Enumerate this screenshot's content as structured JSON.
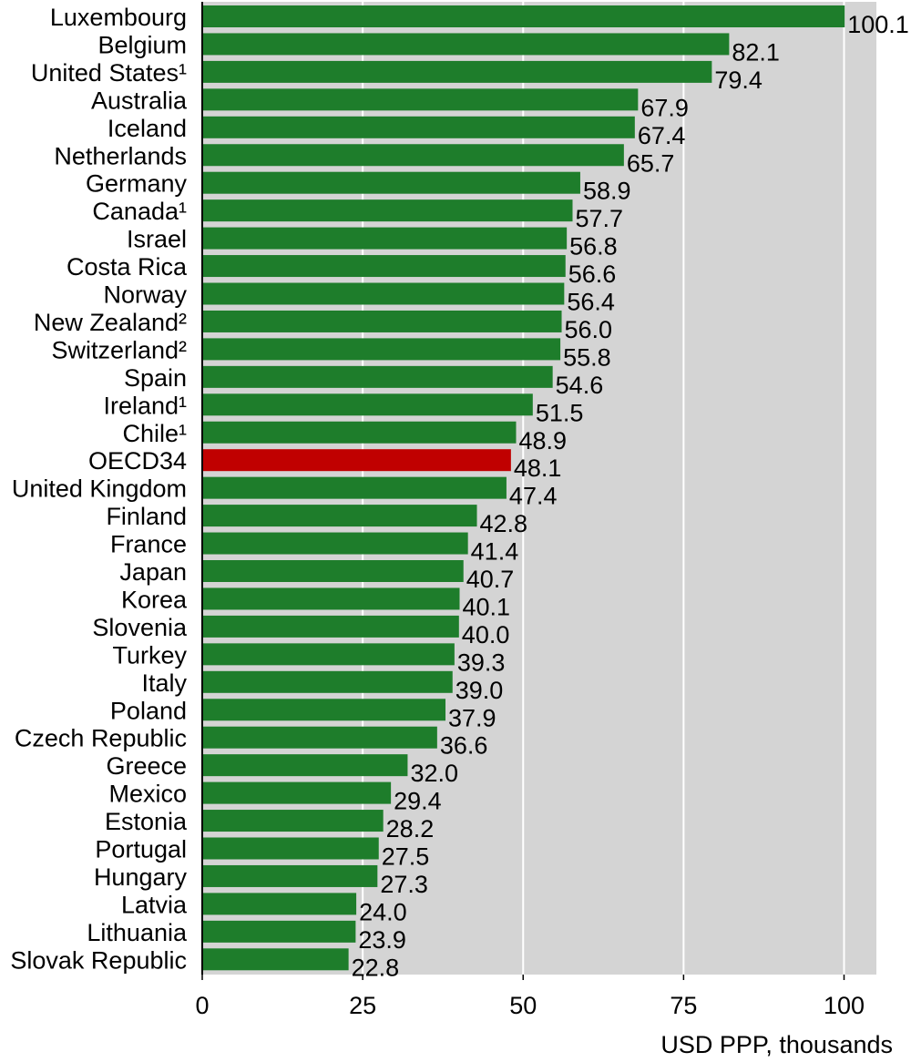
{
  "chart_data": {
    "type": "bar",
    "orientation": "horizontal",
    "categories": [
      "Luxembourg",
      "Belgium",
      "United States¹",
      "Australia",
      "Iceland",
      "Netherlands",
      "Germany",
      "Canada¹",
      "Israel",
      "Costa Rica",
      "Norway",
      "New Zealand²",
      "Switzerland²",
      "Spain",
      "Ireland¹",
      "Chile¹",
      "OECD34",
      "United Kingdom",
      "Finland",
      "France",
      "Japan",
      "Korea",
      "Slovenia",
      "Turkey",
      "Italy",
      "Poland",
      "Czech Republic",
      "Greece",
      "Mexico",
      "Estonia",
      "Portugal",
      "Hungary",
      "Latvia",
      "Lithuania",
      "Slovak Republic"
    ],
    "values": [
      100.1,
      82.1,
      79.4,
      67.9,
      67.4,
      65.7,
      58.9,
      57.7,
      56.8,
      56.6,
      56.4,
      56.0,
      55.8,
      54.6,
      51.5,
      48.9,
      48.1,
      47.4,
      42.8,
      41.4,
      40.7,
      40.1,
      40.0,
      39.3,
      39.0,
      37.9,
      36.6,
      32.0,
      29.4,
      28.2,
      27.5,
      27.3,
      24.0,
      23.9,
      22.8
    ],
    "value_labels": [
      "100.1",
      "82.1",
      "79.4",
      "67.9",
      "67.4",
      "65.7",
      "58.9",
      "57.7",
      "56.8",
      "56.6",
      "56.4",
      "56.0",
      "55.8",
      "54.6",
      "51.5",
      "48.9",
      "48.1",
      "47.4",
      "42.8",
      "41.4",
      "40.7",
      "40.1",
      "40.0",
      "39.3",
      "39.0",
      "37.9",
      "36.6",
      "32.0",
      "29.4",
      "28.2",
      "27.5",
      "27.3",
      "24.0",
      "23.9",
      "22.8"
    ],
    "highlight_category": "OECD34",
    "colors": {
      "bar": "#1e7d2b",
      "highlight": "#c00000",
      "plot_bg": "#d4d4d4",
      "grid": "#ffffff"
    },
    "xlim": [
      0,
      105
    ],
    "xticks": [
      0,
      25,
      50,
      75,
      100
    ],
    "xtick_labels": [
      "0",
      "25",
      "50",
      "75",
      "100"
    ],
    "xlabel": "USD PPP, thousands",
    "title": "",
    "grid": true,
    "legend": "none"
  }
}
